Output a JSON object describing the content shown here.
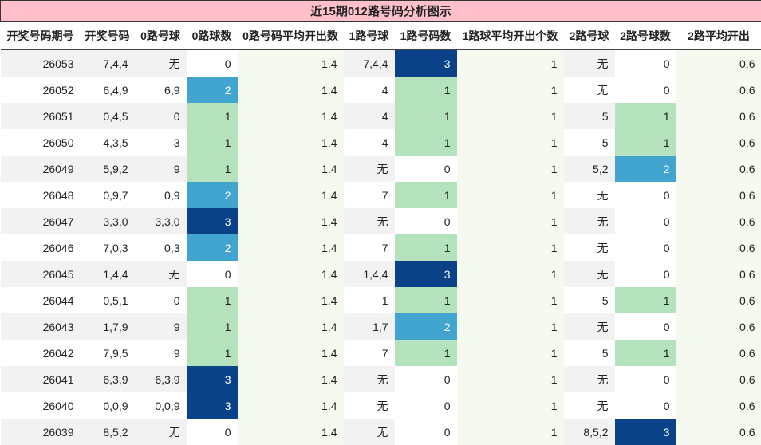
{
  "table": {
    "title": "近15期012路号码分析图示",
    "headers": [
      "开奖号码期号",
      "开奖号码",
      "0路号球",
      "0路球数",
      "0路号码平均开出数",
      "1路号球",
      "1路号码数",
      "1路球平均开出个数",
      "2路号球",
      "2路号球数",
      "2路平均开出"
    ],
    "rows": [
      [
        26053,
        "7,4,4",
        "无",
        0,
        1.4,
        "7,4,4",
        3,
        1,
        "无",
        0,
        0.6
      ],
      [
        26052,
        "6,4,9",
        "6,9",
        2,
        1.4,
        "4",
        1,
        1,
        "无",
        0,
        0.6
      ],
      [
        26051,
        "0,4,5",
        "0",
        1,
        1.4,
        "4",
        1,
        1,
        "5",
        1,
        0.6
      ],
      [
        26050,
        "4,3,5",
        "3",
        1,
        1.4,
        "4",
        1,
        1,
        "5",
        1,
        0.6
      ],
      [
        26049,
        "5,9,2",
        "9",
        1,
        1.4,
        "无",
        0,
        1,
        "5,2",
        2,
        0.6
      ],
      [
        26048,
        "0,9,7",
        "0,9",
        2,
        1.4,
        "7",
        1,
        1,
        "无",
        0,
        0.6
      ],
      [
        26047,
        "3,3,0",
        "3,3,0",
        3,
        1.4,
        "无",
        0,
        1,
        "无",
        0,
        0.6
      ],
      [
        26046,
        "7,0,3",
        "0,3",
        2,
        1.4,
        "7",
        1,
        1,
        "无",
        0,
        0.6
      ],
      [
        26045,
        "1,4,4",
        "无",
        0,
        1.4,
        "1,4,4",
        3,
        1,
        "无",
        0,
        0.6
      ],
      [
        26044,
        "0,5,1",
        "0",
        1,
        1.4,
        "1",
        1,
        1,
        "5",
        1,
        0.6
      ],
      [
        26043,
        "1,7,9",
        "9",
        1,
        1.4,
        "1,7",
        2,
        1,
        "无",
        0,
        0.6
      ],
      [
        26042,
        "7,9,5",
        "9",
        1,
        1.4,
        "7",
        1,
        1,
        "5",
        1,
        0.6
      ],
      [
        26041,
        "6,3,9",
        "6,3,9",
        3,
        1.4,
        "无",
        0,
        1,
        "无",
        0,
        0.6
      ],
      [
        26040,
        "0,0,9",
        "0,0,9",
        3,
        1.4,
        "无",
        0,
        1,
        "无",
        0,
        0.6
      ],
      [
        26039,
        "8,5,2",
        "无",
        0,
        1.4,
        "无",
        0,
        1,
        "8,5,2",
        3,
        0.6
      ]
    ]
  }
}
